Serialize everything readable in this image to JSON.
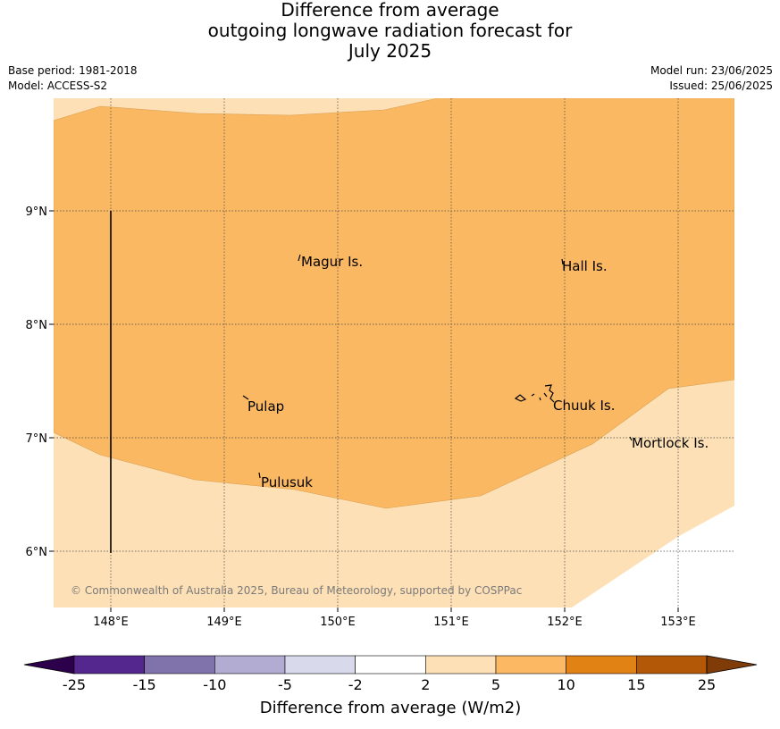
{
  "header": {
    "title_lines": [
      "Difference from average",
      "outgoing longwave radiation forecast for",
      "July 2025"
    ],
    "base_period": "Base period: 1981-2018",
    "model": "Model: ACCESS-S2",
    "model_run": "Model run: 23/06/2025",
    "issued": "Issued: 25/06/2025"
  },
  "map": {
    "lon_labels": [
      "148°E",
      "149°E",
      "150°E",
      "151°E",
      "152°E",
      "153°E"
    ],
    "lat_labels": [
      "9°N",
      "8°N",
      "7°N",
      "6°N"
    ],
    "lon_range": [
      147.5,
      153.5
    ],
    "lat_range": [
      5.5,
      10.0
    ],
    "places": [
      {
        "name": "Magur Is.",
        "lon": 149.67,
        "lat": 8.57
      },
      {
        "name": "Hall Is.",
        "lon": 151.99,
        "lat": 8.54
      },
      {
        "name": "Pulap",
        "lon": 149.18,
        "lat": 7.33
      },
      {
        "name": "Chuuk Is.",
        "lon": 151.9,
        "lat": 7.3
      },
      {
        "name": "Mortlock Is.",
        "lon": 152.62,
        "lat": 6.97
      },
      {
        "name": "Pulusuk",
        "lon": 149.3,
        "lat": 6.65
      }
    ],
    "copyright": "© Commonwealth of Australia 2025, Bureau of Meteorology, supported by COSPPac",
    "colors": {
      "band_2_5": "#fde0b6",
      "band_5_10": "#fbb863",
      "land": "#000000"
    }
  },
  "colorbar": {
    "tick_labels": [
      "-25",
      "-15",
      "-10",
      "-5",
      "-2",
      "2",
      "5",
      "10",
      "15",
      "25"
    ],
    "segment_colors": [
      "#54278f",
      "#8073ac",
      "#b2abd2",
      "#d8daeb",
      "#ffffff",
      "#fee0b6",
      "#fdb863",
      "#e08214",
      "#b35806"
    ],
    "under_color": "#2d004b",
    "over_color": "#7f3b08",
    "label": "Difference from average (W/m2)"
  }
}
